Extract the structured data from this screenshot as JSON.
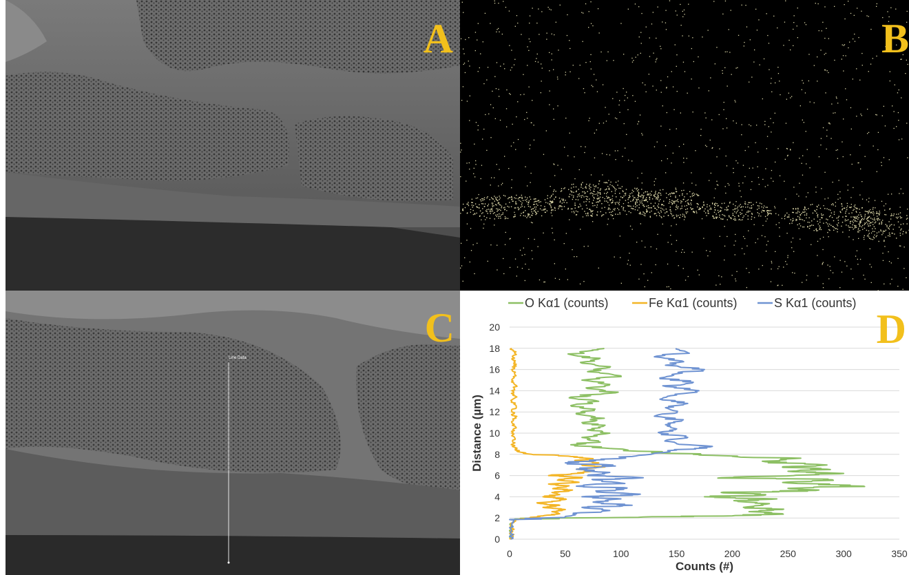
{
  "panels": {
    "a": {
      "letter": "A"
    },
    "b": {
      "letter": "B"
    },
    "c": {
      "letter": "C",
      "line_label": "Line Data"
    },
    "d": {
      "letter": "D"
    }
  },
  "colors": {
    "letter": "#f2c01c",
    "map_dots": "#dcd7a8",
    "line": "#e8e8e8"
  },
  "chart_data": {
    "type": "line",
    "title": "",
    "xlabel": "Counts (#)",
    "ylabel": "Distance (µm)",
    "xlim": [
      0,
      350
    ],
    "ylim": [
      0,
      20
    ],
    "xticks": [
      0,
      50,
      100,
      150,
      200,
      250,
      300,
      350
    ],
    "yticks": [
      0,
      2,
      4,
      6,
      8,
      10,
      12,
      14,
      16,
      18,
      20
    ],
    "grid": true,
    "legend_position": "top",
    "series": [
      {
        "name": "O Kα1 (counts)",
        "color": "#8cbf63",
        "points": [
          [
            1,
            0
          ],
          [
            1,
            0.5
          ],
          [
            1,
            1
          ],
          [
            2,
            1.5
          ],
          [
            5,
            1.9
          ],
          [
            120,
            2.1
          ],
          [
            200,
            2.2
          ],
          [
            245,
            2.4
          ],
          [
            215,
            2.6
          ],
          [
            245,
            2.8
          ],
          [
            210,
            3
          ],
          [
            230,
            3.3
          ],
          [
            205,
            3.6
          ],
          [
            240,
            3.8
          ],
          [
            175,
            4
          ],
          [
            230,
            4.2
          ],
          [
            190,
            4.4
          ],
          [
            275,
            4.6
          ],
          [
            250,
            4.8
          ],
          [
            318,
            5
          ],
          [
            250,
            5.3
          ],
          [
            290,
            5.6
          ],
          [
            190,
            5.8
          ],
          [
            255,
            6
          ],
          [
            300,
            6.2
          ],
          [
            250,
            6.4
          ],
          [
            285,
            6.6
          ],
          [
            245,
            6.8
          ],
          [
            285,
            7
          ],
          [
            230,
            7.3
          ],
          [
            255,
            7.6
          ],
          [
            200,
            7.8
          ],
          [
            165,
            8
          ],
          [
            115,
            8.3
          ],
          [
            85,
            8.6
          ],
          [
            55,
            8.9
          ],
          [
            80,
            9.2
          ],
          [
            65,
            9.6
          ],
          [
            90,
            10
          ],
          [
            70,
            10.3
          ],
          [
            85,
            10.7
          ],
          [
            65,
            11
          ],
          [
            85,
            11.4
          ],
          [
            60,
            11.8
          ],
          [
            75,
            12.2
          ],
          [
            55,
            12.6
          ],
          [
            80,
            13
          ],
          [
            55,
            13.4
          ],
          [
            95,
            13.8
          ],
          [
            70,
            14.2
          ],
          [
            90,
            14.6
          ],
          [
            65,
            15
          ],
          [
            100,
            15.4
          ],
          [
            70,
            15.8
          ],
          [
            90,
            16.2
          ],
          [
            65,
            16.6
          ],
          [
            80,
            17
          ],
          [
            55,
            17.4
          ],
          [
            75,
            17.8
          ],
          [
            85,
            18
          ]
        ]
      },
      {
        "name": "Fe Kα1 (counts)",
        "color": "#f3b526",
        "points": [
          [
            1,
            0
          ],
          [
            3,
            0.3
          ],
          [
            1,
            0.6
          ],
          [
            3,
            1
          ],
          [
            1,
            1.5
          ],
          [
            5,
            1.8
          ],
          [
            18,
            2
          ],
          [
            30,
            2.2
          ],
          [
            45,
            2.4
          ],
          [
            38,
            2.6
          ],
          [
            50,
            2.8
          ],
          [
            30,
            3
          ],
          [
            45,
            3.2
          ],
          [
            25,
            3.4
          ],
          [
            42,
            3.6
          ],
          [
            50,
            3.8
          ],
          [
            30,
            4
          ],
          [
            45,
            4.2
          ],
          [
            38,
            4.4
          ],
          [
            55,
            4.6
          ],
          [
            40,
            4.8
          ],
          [
            52,
            5
          ],
          [
            35,
            5.2
          ],
          [
            60,
            5.4
          ],
          [
            45,
            5.6
          ],
          [
            65,
            5.8
          ],
          [
            35,
            6
          ],
          [
            60,
            6.2
          ],
          [
            75,
            6.4
          ],
          [
            60,
            6.6
          ],
          [
            85,
            6.8
          ],
          [
            65,
            7
          ],
          [
            80,
            7.2
          ],
          [
            60,
            7.4
          ],
          [
            75,
            7.6
          ],
          [
            55,
            7.8
          ],
          [
            20,
            8
          ],
          [
            10,
            8.2
          ],
          [
            5,
            8.5
          ],
          [
            3,
            9
          ],
          [
            5,
            9.5
          ],
          [
            2,
            10
          ],
          [
            6,
            10.5
          ],
          [
            2,
            11
          ],
          [
            5,
            11.5
          ],
          [
            2,
            12
          ],
          [
            6,
            12.5
          ],
          [
            2,
            13
          ],
          [
            5,
            13.5
          ],
          [
            2,
            14
          ],
          [
            6,
            14.5
          ],
          [
            2,
            15
          ],
          [
            5,
            15.5
          ],
          [
            2,
            16
          ],
          [
            6,
            16.5
          ],
          [
            2,
            17
          ],
          [
            5,
            17.5
          ],
          [
            2,
            18
          ]
        ]
      },
      {
        "name": "S Kα1 (counts)",
        "color": "#6f93d2",
        "points": [
          [
            1,
            0
          ],
          [
            2,
            0.5
          ],
          [
            1,
            1
          ],
          [
            2,
            1.5
          ],
          [
            3,
            1.8
          ],
          [
            50,
            2.1
          ],
          [
            60,
            2.4
          ],
          [
            90,
            2.7
          ],
          [
            65,
            3
          ],
          [
            110,
            3.2
          ],
          [
            75,
            3.5
          ],
          [
            100,
            3.8
          ],
          [
            65,
            4
          ],
          [
            115,
            4.2
          ],
          [
            80,
            4.5
          ],
          [
            105,
            4.8
          ],
          [
            60,
            5
          ],
          [
            100,
            5.3
          ],
          [
            75,
            5.6
          ],
          [
            120,
            5.8
          ],
          [
            70,
            6
          ],
          [
            90,
            6.3
          ],
          [
            60,
            6.6
          ],
          [
            95,
            6.9
          ],
          [
            50,
            7.2
          ],
          [
            85,
            7.5
          ],
          [
            110,
            7.8
          ],
          [
            130,
            8.1
          ],
          [
            150,
            8.4
          ],
          [
            180,
            8.7
          ],
          [
            150,
            9
          ],
          [
            140,
            9.3
          ],
          [
            160,
            9.6
          ],
          [
            135,
            10
          ],
          [
            150,
            10.4
          ],
          [
            140,
            10.8
          ],
          [
            155,
            11.2
          ],
          [
            130,
            11.6
          ],
          [
            150,
            12
          ],
          [
            140,
            12.4
          ],
          [
            160,
            12.8
          ],
          [
            135,
            13.2
          ],
          [
            150,
            13.6
          ],
          [
            170,
            14
          ],
          [
            140,
            14.4
          ],
          [
            165,
            14.8
          ],
          [
            135,
            15.2
          ],
          [
            150,
            15.6
          ],
          [
            175,
            16
          ],
          [
            140,
            16.4
          ],
          [
            155,
            16.8
          ],
          [
            130,
            17.2
          ],
          [
            160,
            17.6
          ],
          [
            150,
            18
          ]
        ]
      }
    ]
  }
}
